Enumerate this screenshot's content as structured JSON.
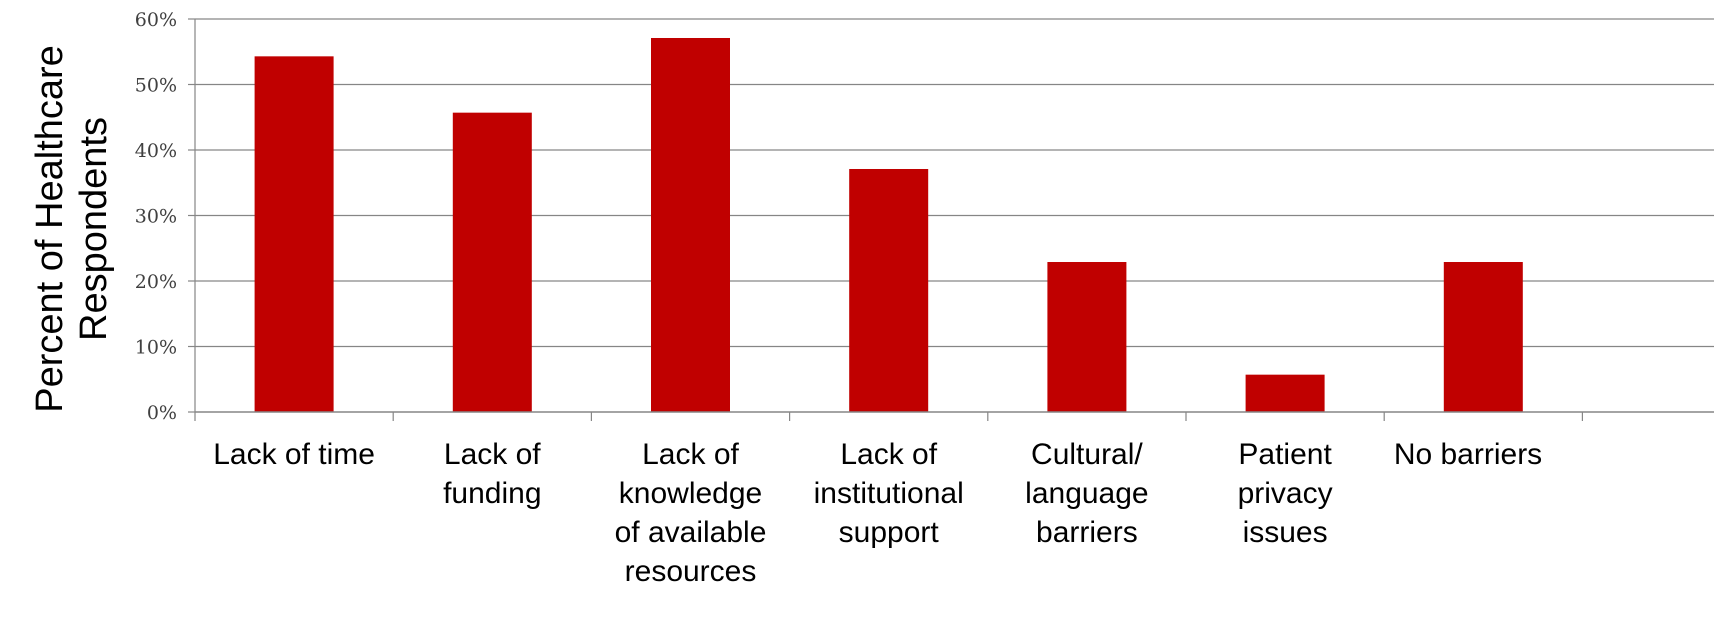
{
  "chart_data": {
    "type": "bar",
    "title": "",
    "xlabel": "",
    "ylabel": "Percent of Healthcare Respondents",
    "ylabel_lines": [
      "Percent of Healthcare",
      "Respondents"
    ],
    "ylim": [
      0,
      60
    ],
    "yticks": [
      "0%",
      "10%",
      "20%",
      "30%",
      "40%",
      "50%",
      "60%"
    ],
    "grid": true,
    "legend": "none",
    "categories": [
      "Lack of time",
      "Lack of funding",
      "Lack of knowledge of available resources",
      "Lack of institutional support",
      "Cultural/ language barriers",
      "Patient privacy issues",
      "No barriers"
    ],
    "category_lines": [
      [
        "Lack of time"
      ],
      [
        "Lack of",
        "funding"
      ],
      [
        "Lack of",
        "knowledge",
        "of available",
        "resources"
      ],
      [
        "Lack of",
        "institutional",
        "support"
      ],
      [
        "Cultural/",
        "language",
        "barriers"
      ],
      [
        "Patient",
        "privacy",
        "issues"
      ],
      [
        "No barriers"
      ]
    ],
    "values": [
      54.3,
      45.7,
      57.1,
      37.1,
      22.9,
      5.7,
      22.9
    ],
    "bar_color": "#c00000",
    "grid_color": "#868686",
    "axis_color": "#868686"
  }
}
